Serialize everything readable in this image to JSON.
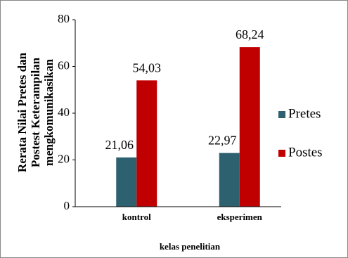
{
  "chart_data": {
    "type": "bar",
    "ylabel": [
      "Rerata Nilai Pretes dan",
      "Postest Keterampilan",
      "mengkomunikasikan"
    ],
    "xlabel": "kelas penelitian",
    "categories": [
      "kontrol",
      "eksperimen"
    ],
    "series": [
      {
        "name": "Pretes",
        "color": "#2e6170",
        "values": [
          21.06,
          22.97
        ],
        "value_labels": [
          "21,06",
          "22,97"
        ]
      },
      {
        "name": "Postes",
        "color": "#c00000",
        "values": [
          54.03,
          68.24
        ],
        "value_labels": [
          "54,03",
          "68,24"
        ]
      }
    ],
    "ylim": [
      0,
      80
    ],
    "yticks": [
      0,
      20,
      40,
      60,
      80
    ],
    "legend": "right"
  }
}
